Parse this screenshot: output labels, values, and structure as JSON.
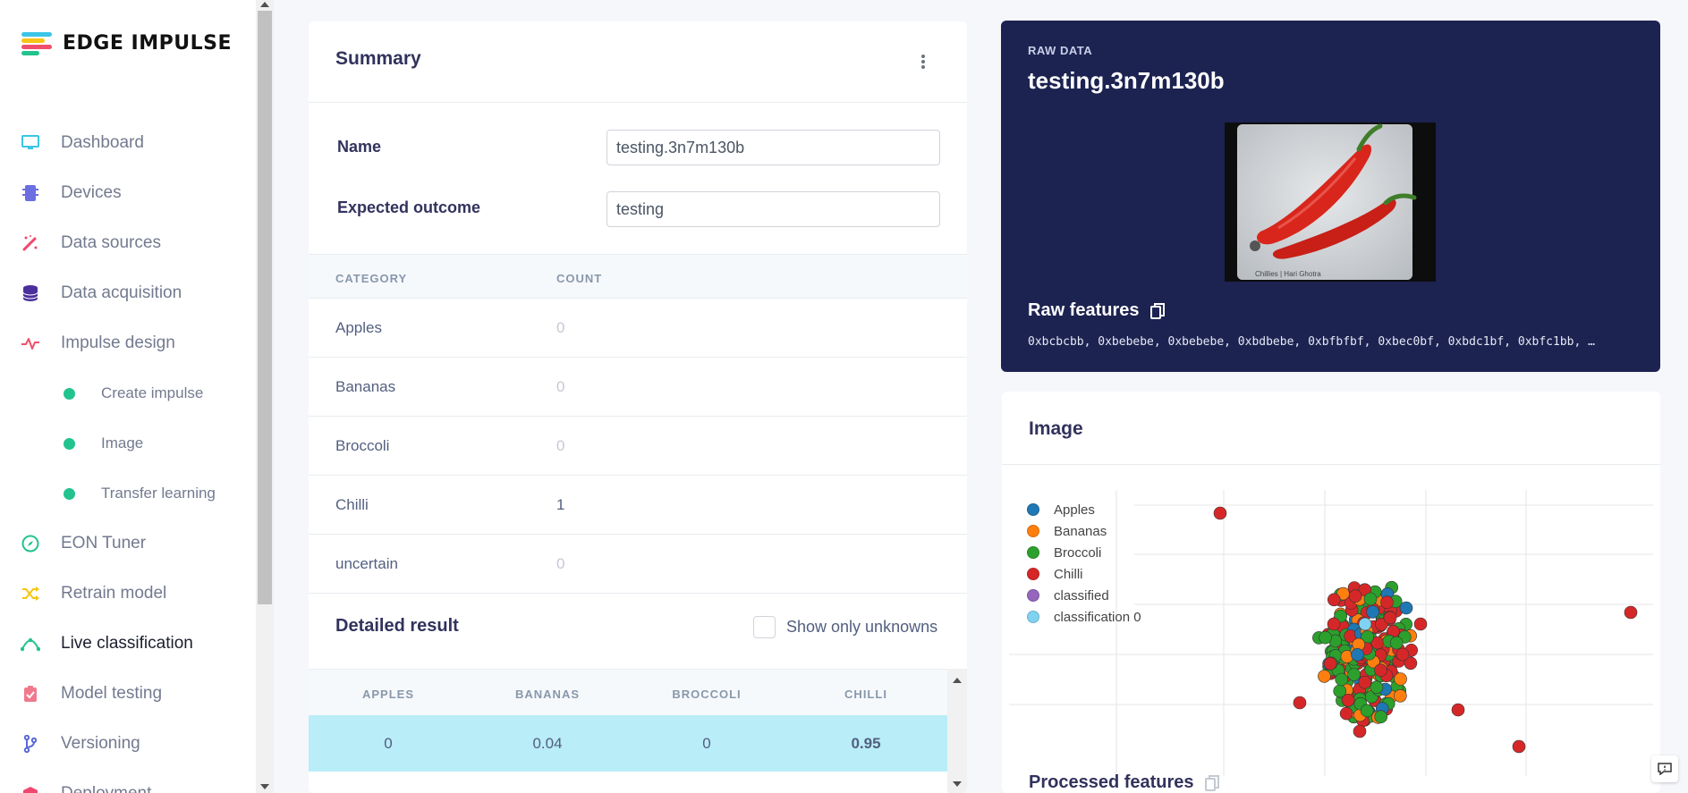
{
  "app": {
    "name": "EDGE IMPULSE"
  },
  "sidebar": {
    "items": [
      {
        "label": "Dashboard",
        "icon": "monitor-icon",
        "color": "#3bc5e6"
      },
      {
        "label": "Devices",
        "icon": "chip-icon",
        "color": "#6b6fe0"
      },
      {
        "label": "Data sources",
        "icon": "magic-wand-icon",
        "color": "#ef476f"
      },
      {
        "label": "Data acquisition",
        "icon": "database-icon",
        "color": "#4b2f9d"
      },
      {
        "label": "Impulse design",
        "icon": "pulse-icon",
        "color": "#ef4f6a"
      },
      {
        "label": "Create impulse",
        "sub": true
      },
      {
        "label": "Image",
        "sub": true
      },
      {
        "label": "Transfer learning",
        "sub": true
      },
      {
        "label": "EON Tuner",
        "icon": "compass-icon",
        "color": "#22c38e"
      },
      {
        "label": "Retrain model",
        "icon": "shuffle-icon",
        "color": "#f7c416"
      },
      {
        "label": "Live classification",
        "icon": "route-icon",
        "color": "#22c38e",
        "active": true
      },
      {
        "label": "Model testing",
        "icon": "clipboard-check-icon",
        "color": "#ef7a8d"
      },
      {
        "label": "Versioning",
        "icon": "branch-icon",
        "color": "#5a69d8"
      },
      {
        "label": "Deployment",
        "icon": "box-icon",
        "color": "#ef476f"
      }
    ]
  },
  "summary": {
    "title": "Summary",
    "name_label": "Name",
    "name_value": "testing.3n7m130b",
    "outcome_label": "Expected outcome",
    "outcome_value": "testing",
    "col_category": "CATEGORY",
    "col_count": "COUNT",
    "categories": [
      {
        "name": "Apples",
        "count": "0"
      },
      {
        "name": "Bananas",
        "count": "0"
      },
      {
        "name": "Broccoli",
        "count": "0"
      },
      {
        "name": "Chilli",
        "count": "1"
      },
      {
        "name": "uncertain",
        "count": "0"
      }
    ],
    "detailed_title": "Detailed result",
    "show_unknowns": "Show only unknowns",
    "detail_columns": [
      "APPLES",
      "BANANAS",
      "BROCCOLI",
      "CHILLI"
    ],
    "detail_row": [
      "0",
      "0.04",
      "0",
      "0.95"
    ]
  },
  "raw": {
    "small_label": "RAW DATA",
    "title": "testing.3n7m130b",
    "image_caption": "Chillies | Hari Ghotra",
    "features_label": "Raw features",
    "features_values": "0xbcbcbb, 0xbebebe, 0xbebebe, 0xbdbebe, 0xbfbfbf, 0xbec0bf, 0xbdc1bf, 0xbfc1bb, …"
  },
  "image_card": {
    "title": "Image",
    "processed_label": "Processed features",
    "legend": [
      {
        "name": "Apples",
        "color": "#1f77b4"
      },
      {
        "name": "Bananas",
        "color": "#ff7f0e"
      },
      {
        "name": "Broccoli",
        "color": "#2ca02c"
      },
      {
        "name": "Chilli",
        "color": "#d62728"
      },
      {
        "name": "classified",
        "color": "#9467bd"
      },
      {
        "name": "classification 0",
        "color": "#7fd3f0"
      }
    ]
  }
}
